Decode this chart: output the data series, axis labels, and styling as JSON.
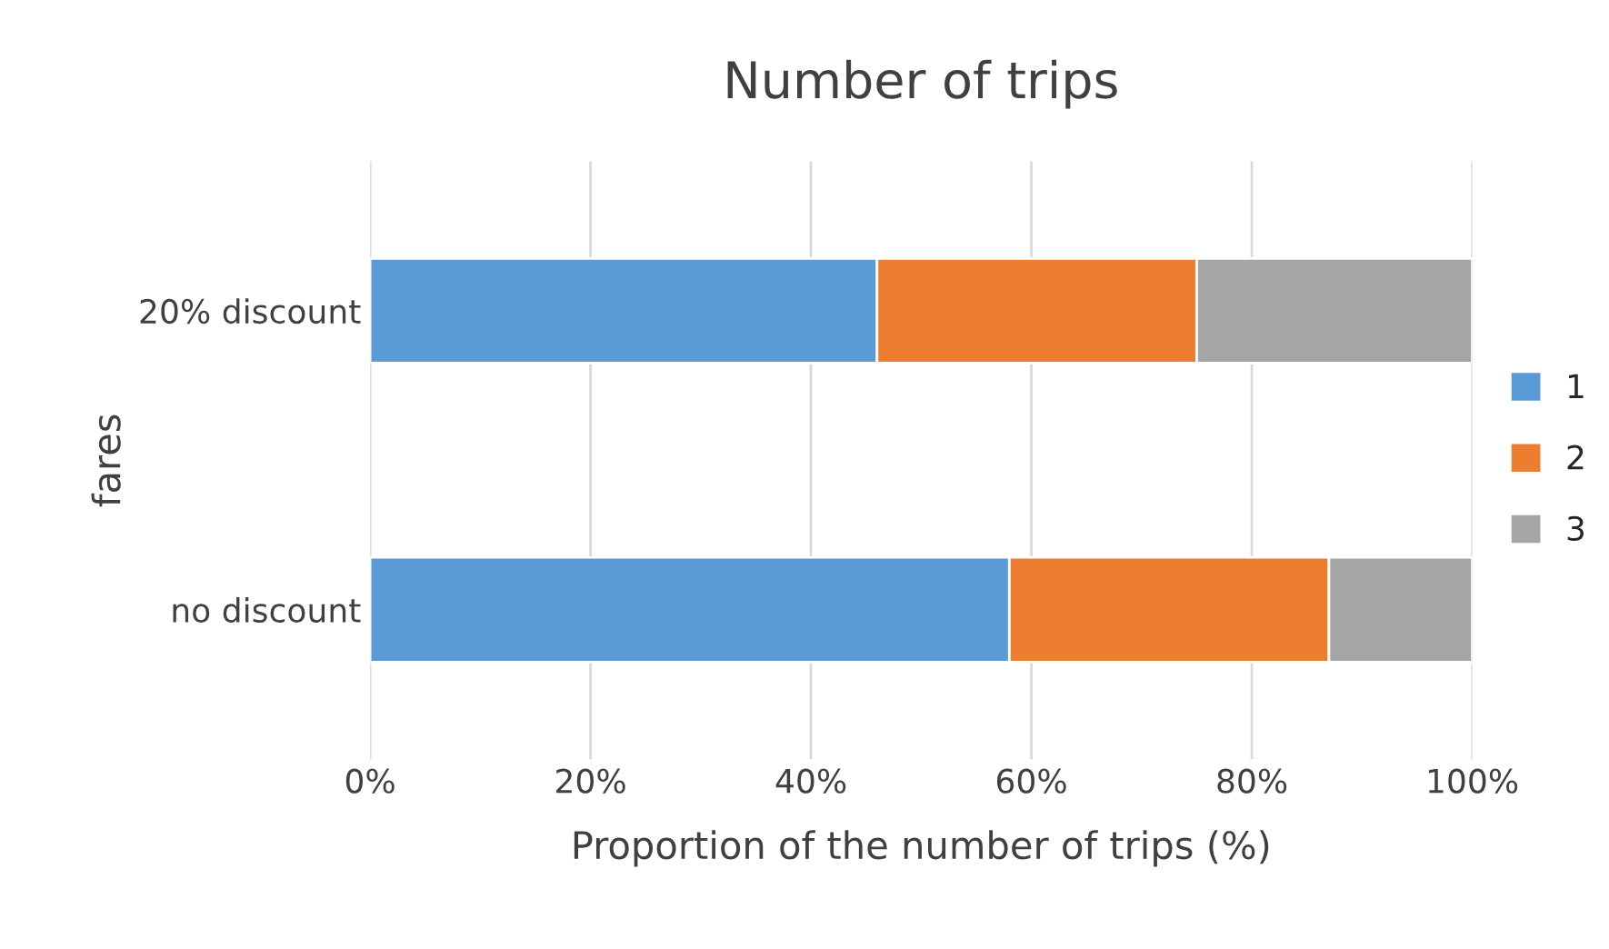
{
  "chart_data": {
    "type": "bar",
    "title": "Number of trips",
    "xlabel": "Proportion of the number of trips (%)",
    "ylabel": "fares",
    "orientation": "horizontal",
    "stacked": true,
    "categories": [
      "20% discount",
      "no discount"
    ],
    "series": [
      {
        "name": "1",
        "color": "#5b9bd5",
        "values": [
          46,
          58
        ]
      },
      {
        "name": "2",
        "color": "#ed7d31",
        "values": [
          29,
          29
        ]
      },
      {
        "name": "3",
        "color": "#a5a5a5",
        "values": [
          25,
          13
        ]
      }
    ],
    "xlim": [
      0,
      100
    ],
    "xticks": [
      {
        "value": 0,
        "label": "0%"
      },
      {
        "value": 20,
        "label": "20%"
      },
      {
        "value": 40,
        "label": "40%"
      },
      {
        "value": 60,
        "label": "60%"
      },
      {
        "value": 80,
        "label": "80%"
      },
      {
        "value": 100,
        "label": "100%"
      }
    ],
    "grid": "x",
    "legend": "right"
  }
}
